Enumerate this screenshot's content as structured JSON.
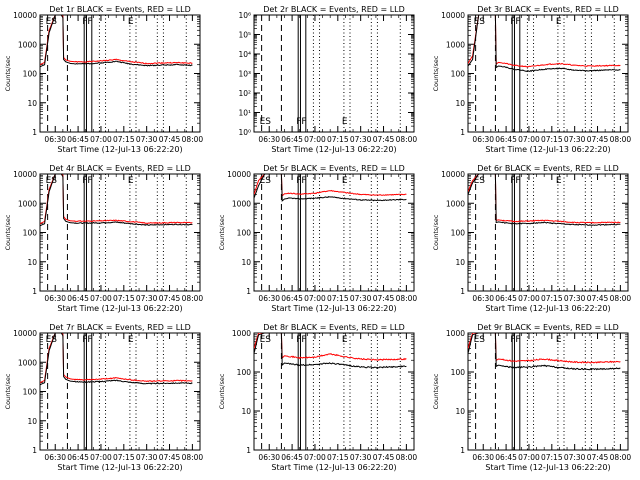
{
  "figure": {
    "xlabel": "Start Time (12-Jul-13 06:22:20)",
    "ylabel": "Counts/sec",
    "x_tick_labels": [
      "06:30",
      "06:45",
      "07:00",
      "07:15",
      "07:30",
      "07:45",
      "08:00"
    ],
    "marker_labels": [
      "ES",
      "FF",
      "E"
    ],
    "colors": {
      "events": "#000000",
      "lld": "#ff0000"
    }
  },
  "chart_data": [
    {
      "type": "line",
      "title": "Det 1r BLACK = Events, RED = LLD",
      "xlabel": "Start Time (12-Jul-13 06:22:20)",
      "ylabel": "Counts/sec",
      "x_range_minutes": [
        0,
        105
      ],
      "y_scale": "log",
      "ylim": [
        1,
        10000
      ],
      "y_tick_labels": [
        "1",
        "10",
        "100",
        "1000",
        "10000"
      ],
      "vlines_dashed": [
        5,
        18
      ],
      "vlines_solid": [
        29,
        30.5,
        34
      ],
      "vlines_dotted": [
        39,
        43,
        59,
        63,
        77,
        81,
        96
      ],
      "markers": [
        {
          "label": "ES",
          "x": 5
        },
        {
          "label": "FF",
          "x": 29
        },
        {
          "label": "E",
          "x": 59
        }
      ],
      "series": [
        {
          "name": "Events",
          "color": "#000000",
          "x": [
            0,
            3,
            6,
            10,
            14,
            15,
            15.5,
            17,
            20,
            24,
            30,
            40,
            50,
            60,
            70,
            80,
            90,
            100
          ],
          "y": [
            170,
            200,
            2500,
            10000,
            10000,
            8000,
            300,
            250,
            220,
            215,
            215,
            230,
            260,
            210,
            185,
            195,
            200,
            190
          ]
        },
        {
          "name": "LLD",
          "color": "#ff0000",
          "x": [
            0,
            3,
            6,
            10,
            14,
            15,
            15.5,
            17,
            20,
            24,
            30,
            40,
            50,
            60,
            70,
            80,
            90,
            100
          ],
          "y": [
            200,
            240,
            3000,
            10000,
            10000,
            9000,
            350,
            290,
            260,
            250,
            250,
            270,
            300,
            250,
            220,
            230,
            235,
            225
          ]
        }
      ]
    },
    {
      "type": "line",
      "title": "Det 2r BLACK = Events, RED = LLD",
      "xlabel": "Start Time (12-Jul-13 06:22:20)",
      "ylabel": "",
      "x_range_minutes": [
        0,
        105
      ],
      "y_scale": "log",
      "ylim": [
        1,
        1000000
      ],
      "y_tick_labels": [
        "10⁰",
        "10¹",
        "10²",
        "10³",
        "10⁴",
        "10⁵",
        "10⁶"
      ],
      "vlines_dashed": [
        5,
        18
      ],
      "vlines_solid": [
        29,
        30.5,
        34
      ],
      "vlines_dotted": [
        39,
        43,
        59,
        63,
        77,
        81,
        96
      ],
      "markers": [
        {
          "label": "ES",
          "x": 5
        },
        {
          "label": "FF",
          "x": 29
        },
        {
          "label": "E",
          "x": 59
        }
      ],
      "series": []
    },
    {
      "type": "line",
      "title": "Det 3r BLACK = Events, RED = LLD",
      "xlabel": "Start Time (12-Jul-13 06:22:20)",
      "ylabel": "Counts/sec",
      "x_range_minutes": [
        0,
        105
      ],
      "y_scale": "log",
      "ylim": [
        1,
        10000
      ],
      "y_tick_labels": [
        "1",
        "10",
        "100",
        "1000",
        "10000"
      ],
      "vlines_dashed": [
        5,
        18
      ],
      "vlines_solid": [
        29,
        30.5,
        34
      ],
      "vlines_dotted": [
        39,
        43,
        59,
        63,
        77,
        81,
        96
      ],
      "markers": [
        {
          "label": "ES",
          "x": 5
        },
        {
          "label": "FF",
          "x": 29
        },
        {
          "label": "E",
          "x": 59
        }
      ],
      "series": [
        {
          "name": "Events",
          "color": "#000000",
          "x": [
            0,
            3,
            7,
            12,
            18,
            18.5,
            20,
            24,
            30,
            40,
            50,
            60,
            70,
            80,
            90,
            100
          ],
          "y": [
            180,
            300,
            10000,
            10000,
            10000,
            160,
            180,
            170,
            140,
            120,
            140,
            150,
            130,
            125,
            130,
            135
          ]
        },
        {
          "name": "LLD",
          "color": "#ff0000",
          "x": [
            0,
            3,
            7,
            12,
            18,
            18.5,
            20,
            24,
            30,
            40,
            50,
            60,
            70,
            80,
            90,
            100
          ],
          "y": [
            220,
            400,
            10000,
            10000,
            10000,
            210,
            240,
            225,
            190,
            170,
            200,
            220,
            190,
            180,
            185,
            190
          ]
        }
      ]
    },
    {
      "type": "line",
      "title": "Det 4r BLACK = Events, RED = LLD",
      "xlabel": "Start Time (12-Jul-13 06:22:20)",
      "ylabel": "Counts/sec",
      "x_range_minutes": [
        0,
        105
      ],
      "y_scale": "log",
      "ylim": [
        1,
        10000
      ],
      "y_tick_labels": [
        "1",
        "10",
        "100",
        "1000",
        "10000"
      ],
      "vlines_dashed": [
        5,
        18
      ],
      "vlines_solid": [
        29,
        30.5,
        34
      ],
      "vlines_dotted": [
        39,
        43,
        59,
        63,
        77,
        81,
        96
      ],
      "markers": [
        {
          "label": "ES",
          "x": 5
        },
        {
          "label": "FF",
          "x": 29
        },
        {
          "label": "E",
          "x": 59
        }
      ],
      "series": [
        {
          "name": "Events",
          "color": "#000000",
          "x": [
            0,
            3,
            6,
            10,
            14,
            15,
            15.5,
            17,
            20,
            24,
            30,
            40,
            50,
            60,
            70,
            80,
            90,
            100
          ],
          "y": [
            170,
            200,
            2500,
            10000,
            10000,
            8000,
            300,
            240,
            215,
            210,
            210,
            215,
            225,
            200,
            180,
            185,
            190,
            185
          ]
        },
        {
          "name": "LLD",
          "color": "#ff0000",
          "x": [
            0,
            3,
            6,
            10,
            14,
            15,
            15.5,
            17,
            20,
            24,
            30,
            40,
            50,
            60,
            70,
            80,
            90,
            100
          ],
          "y": [
            200,
            240,
            3000,
            10000,
            10000,
            9000,
            350,
            280,
            250,
            245,
            245,
            250,
            260,
            235,
            210,
            215,
            220,
            215
          ]
        }
      ]
    },
    {
      "type": "line",
      "title": "Det 5r BLACK = Events, RED = LLD",
      "xlabel": "Start Time (12-Jul-13 06:22:20)",
      "ylabel": "Counts/sec",
      "x_range_minutes": [
        0,
        105
      ],
      "y_scale": "log",
      "ylim": [
        1,
        10000
      ],
      "y_tick_labels": [
        "1",
        "10",
        "100",
        "1000",
        "10000"
      ],
      "vlines_dashed": [
        5,
        18
      ],
      "vlines_solid": [
        29,
        30.5,
        34
      ],
      "vlines_dotted": [
        39,
        43,
        59,
        63,
        77,
        81,
        96
      ],
      "markers": [
        {
          "label": "ES",
          "x": 5
        },
        {
          "label": "FF",
          "x": 29
        },
        {
          "label": "E",
          "x": 59
        }
      ],
      "series": [
        {
          "name": "Events",
          "color": "#000000",
          "x": [
            0,
            3,
            7,
            12,
            18,
            18.5,
            20,
            24,
            30,
            40,
            50,
            60,
            70,
            80,
            90,
            100
          ],
          "y": [
            1500,
            4000,
            10000,
            10000,
            10000,
            1200,
            1400,
            1500,
            1400,
            1500,
            1650,
            1450,
            1300,
            1250,
            1300,
            1350
          ]
        },
        {
          "name": "LLD",
          "color": "#ff0000",
          "x": [
            0,
            3,
            7,
            12,
            18,
            18.5,
            20,
            24,
            30,
            40,
            50,
            60,
            70,
            80,
            90,
            100
          ],
          "y": [
            2000,
            6000,
            10000,
            10000,
            10000,
            1800,
            2100,
            2200,
            2050,
            2200,
            2700,
            2300,
            2000,
            1900,
            1950,
            2000
          ]
        }
      ]
    },
    {
      "type": "line",
      "title": "Det 6r BLACK = Events, RED = LLD",
      "xlabel": "Start Time (12-Jul-13 06:22:20)",
      "ylabel": "Counts/sec",
      "x_range_minutes": [
        0,
        105
      ],
      "y_scale": "log",
      "ylim": [
        1,
        10000
      ],
      "y_tick_labels": [
        "1",
        "10",
        "100",
        "1000",
        "10000"
      ],
      "vlines_dashed": [
        5,
        18
      ],
      "vlines_solid": [
        29,
        30.5,
        34
      ],
      "vlines_dotted": [
        39,
        43,
        59,
        63,
        77,
        81,
        96
      ],
      "markers": [
        {
          "label": "ES",
          "x": 5
        },
        {
          "label": "FF",
          "x": 29
        },
        {
          "label": "E",
          "x": 59
        }
      ],
      "series": [
        {
          "name": "Events",
          "color": "#000000",
          "x": [
            0,
            3,
            7,
            12,
            18,
            18.5,
            20,
            24,
            30,
            40,
            50,
            60,
            70,
            80,
            90,
            100
          ],
          "y": [
            2000,
            5000,
            10000,
            10000,
            10000,
            220,
            230,
            215,
            200,
            205,
            220,
            200,
            185,
            180,
            185,
            190
          ]
        },
        {
          "name": "LLD",
          "color": "#ff0000",
          "x": [
            0,
            3,
            7,
            12,
            18,
            18.5,
            20,
            24,
            30,
            40,
            50,
            60,
            70,
            80,
            90,
            100
          ],
          "y": [
            2500,
            6000,
            10000,
            10000,
            10000,
            260,
            270,
            255,
            240,
            245,
            260,
            240,
            220,
            215,
            220,
            225
          ]
        }
      ]
    },
    {
      "type": "line",
      "title": "Det 7r BLACK = Events, RED = LLD",
      "xlabel": "Start Time (12-Jul-13 06:22:20)",
      "ylabel": "Counts/sec",
      "x_range_minutes": [
        0,
        105
      ],
      "y_scale": "log",
      "ylim": [
        1,
        10000
      ],
      "y_tick_labels": [
        "1",
        "10",
        "100",
        "1000",
        "10000"
      ],
      "vlines_dashed": [
        5,
        18
      ],
      "vlines_solid": [
        29,
        30.5,
        34
      ],
      "vlines_dotted": [
        39,
        43,
        59,
        63,
        77,
        81,
        96
      ],
      "markers": [
        {
          "label": "ES",
          "x": 5
        },
        {
          "label": "FF",
          "x": 29
        },
        {
          "label": "E",
          "x": 59
        }
      ],
      "series": [
        {
          "name": "Events",
          "color": "#000000",
          "x": [
            0,
            3,
            6,
            10,
            14,
            15,
            15.5,
            17,
            20,
            24,
            30,
            40,
            50,
            60,
            70,
            80,
            90,
            100
          ],
          "y": [
            170,
            200,
            2500,
            10000,
            10000,
            8000,
            320,
            260,
            225,
            215,
            210,
            220,
            240,
            205,
            185,
            190,
            195,
            190
          ]
        },
        {
          "name": "LLD",
          "color": "#ff0000",
          "x": [
            0,
            3,
            6,
            10,
            14,
            15,
            15.5,
            17,
            20,
            24,
            30,
            40,
            50,
            60,
            70,
            80,
            90,
            100
          ],
          "y": [
            200,
            240,
            3000,
            10000,
            10000,
            9000,
            380,
            310,
            270,
            255,
            250,
            265,
            290,
            250,
            225,
            230,
            235,
            230
          ]
        }
      ]
    },
    {
      "type": "line",
      "title": "Det 8r BLACK = Events, RED = LLD",
      "xlabel": "Start Time (12-Jul-13 06:22:20)",
      "ylabel": "Counts/sec",
      "x_range_minutes": [
        0,
        105
      ],
      "y_scale": "log",
      "ylim": [
        1,
        1000
      ],
      "y_tick_labels": [
        "1",
        "10",
        "100",
        "1000"
      ],
      "vlines_dashed": [
        5,
        18
      ],
      "vlines_solid": [
        29,
        30.5,
        34
      ],
      "vlines_dotted": [
        39,
        43,
        59,
        63,
        77,
        81,
        96
      ],
      "markers": [
        {
          "label": "ES",
          "x": 5
        },
        {
          "label": "FF",
          "x": 29
        },
        {
          "label": "E",
          "x": 59
        }
      ],
      "series": [
        {
          "name": "Events",
          "color": "#000000",
          "x": [
            0,
            3,
            7,
            12,
            18,
            18.5,
            20,
            24,
            30,
            40,
            50,
            60,
            70,
            80,
            90,
            100
          ],
          "y": [
            300,
            900,
            1000,
            1000,
            1000,
            150,
            170,
            160,
            150,
            155,
            170,
            150,
            135,
            130,
            135,
            140
          ]
        },
        {
          "name": "LLD",
          "color": "#ff0000",
          "x": [
            0,
            3,
            7,
            12,
            18,
            18.5,
            20,
            24,
            30,
            40,
            50,
            60,
            70,
            80,
            90,
            100
          ],
          "y": [
            400,
            1000,
            1000,
            1000,
            1000,
            230,
            260,
            250,
            230,
            240,
            290,
            245,
            215,
            205,
            210,
            215
          ]
        }
      ]
    },
    {
      "type": "line",
      "title": "Det 9r BLACK = Events, RED = LLD",
      "xlabel": "Start Time (12-Jul-13 06:22:20)",
      "ylabel": "Counts/sec",
      "x_range_minutes": [
        0,
        105
      ],
      "y_scale": "log",
      "ylim": [
        1,
        1000
      ],
      "y_tick_labels": [
        "1",
        "10",
        "100",
        "1000"
      ],
      "vlines_dashed": [
        5,
        18
      ],
      "vlines_solid": [
        29,
        30.5,
        34
      ],
      "vlines_dotted": [
        39,
        43,
        59,
        63,
        77,
        81,
        96
      ],
      "markers": [
        {
          "label": "ES",
          "x": 5
        },
        {
          "label": "FF",
          "x": 29
        },
        {
          "label": "E",
          "x": 59
        }
      ],
      "series": [
        {
          "name": "Events",
          "color": "#000000",
          "x": [
            0,
            3,
            7,
            12,
            18,
            18.5,
            20,
            24,
            30,
            40,
            50,
            60,
            70,
            80,
            90,
            100
          ],
          "y": [
            300,
            900,
            1000,
            1000,
            1000,
            140,
            150,
            140,
            130,
            135,
            145,
            130,
            120,
            118,
            120,
            125
          ]
        },
        {
          "name": "LLD",
          "color": "#ff0000",
          "x": [
            0,
            3,
            7,
            12,
            18,
            18.5,
            20,
            24,
            30,
            40,
            50,
            60,
            70,
            80,
            90,
            100
          ],
          "y": [
            400,
            1000,
            1000,
            1000,
            1000,
            200,
            215,
            205,
            190,
            195,
            215,
            195,
            180,
            175,
            180,
            185
          ]
        }
      ]
    }
  ]
}
